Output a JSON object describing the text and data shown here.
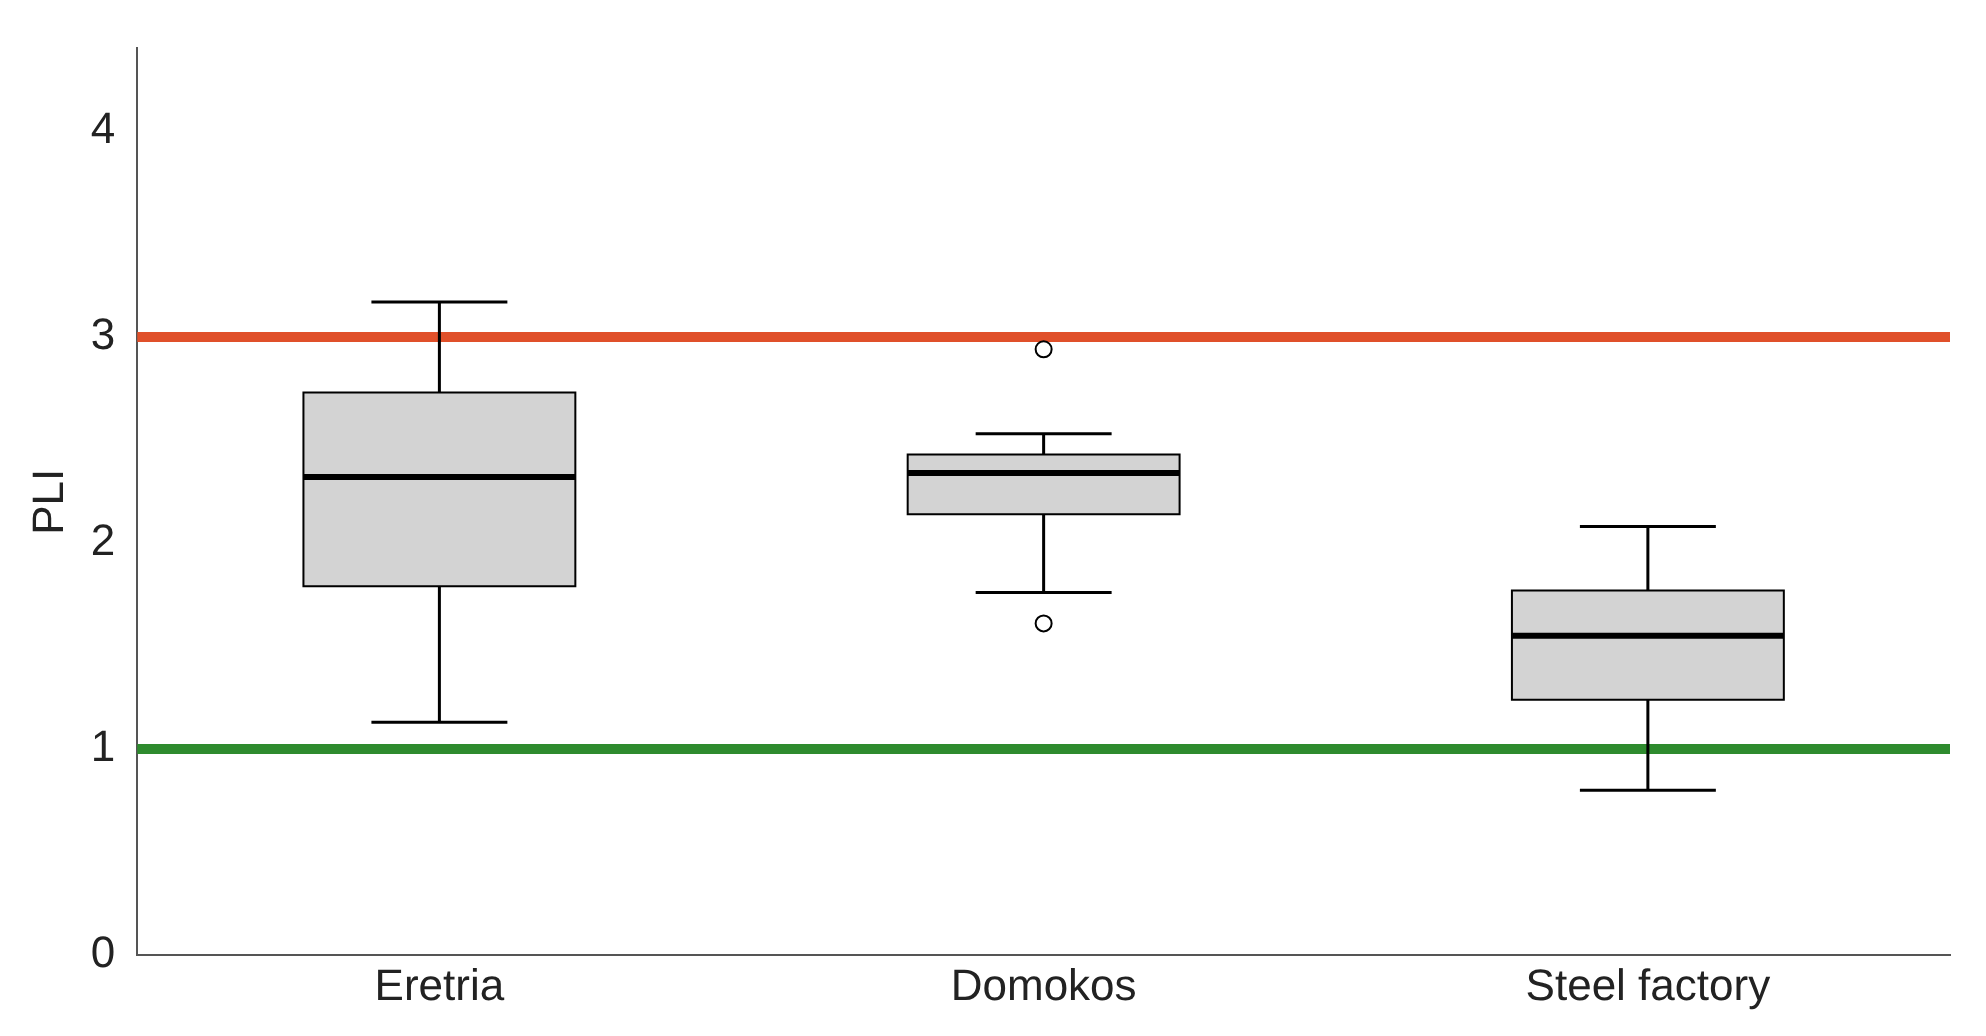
{
  "chart_data": {
    "type": "box",
    "ylabel": "PLI",
    "categories": [
      "Eretria",
      "Domokos",
      "Steel factory"
    ],
    "color": "#d3d3d3",
    "boxes": [
      {
        "low": 1.13,
        "q1": 1.79,
        "median": 2.32,
        "q3": 2.73,
        "high": 3.17
      },
      {
        "low": 1.76,
        "q1": 2.14,
        "median": 2.34,
        "q3": 2.43,
        "high": 2.53,
        "outliers": [
          2.94,
          1.61
        ]
      },
      {
        "low": 0.8,
        "q1": 1.24,
        "median": 1.55,
        "q3": 1.77,
        "high": 2.08
      }
    ],
    "ylim": [
      0,
      4.4
    ],
    "yticks": [
      0,
      1,
      2,
      3,
      4
    ],
    "grid": false,
    "legend": false,
    "ref_lines": [
      {
        "axis": "y",
        "value": 3,
        "color": "#e0502a"
      },
      {
        "axis": "y",
        "value": 1,
        "color": "#2e8b2e"
      }
    ]
  }
}
